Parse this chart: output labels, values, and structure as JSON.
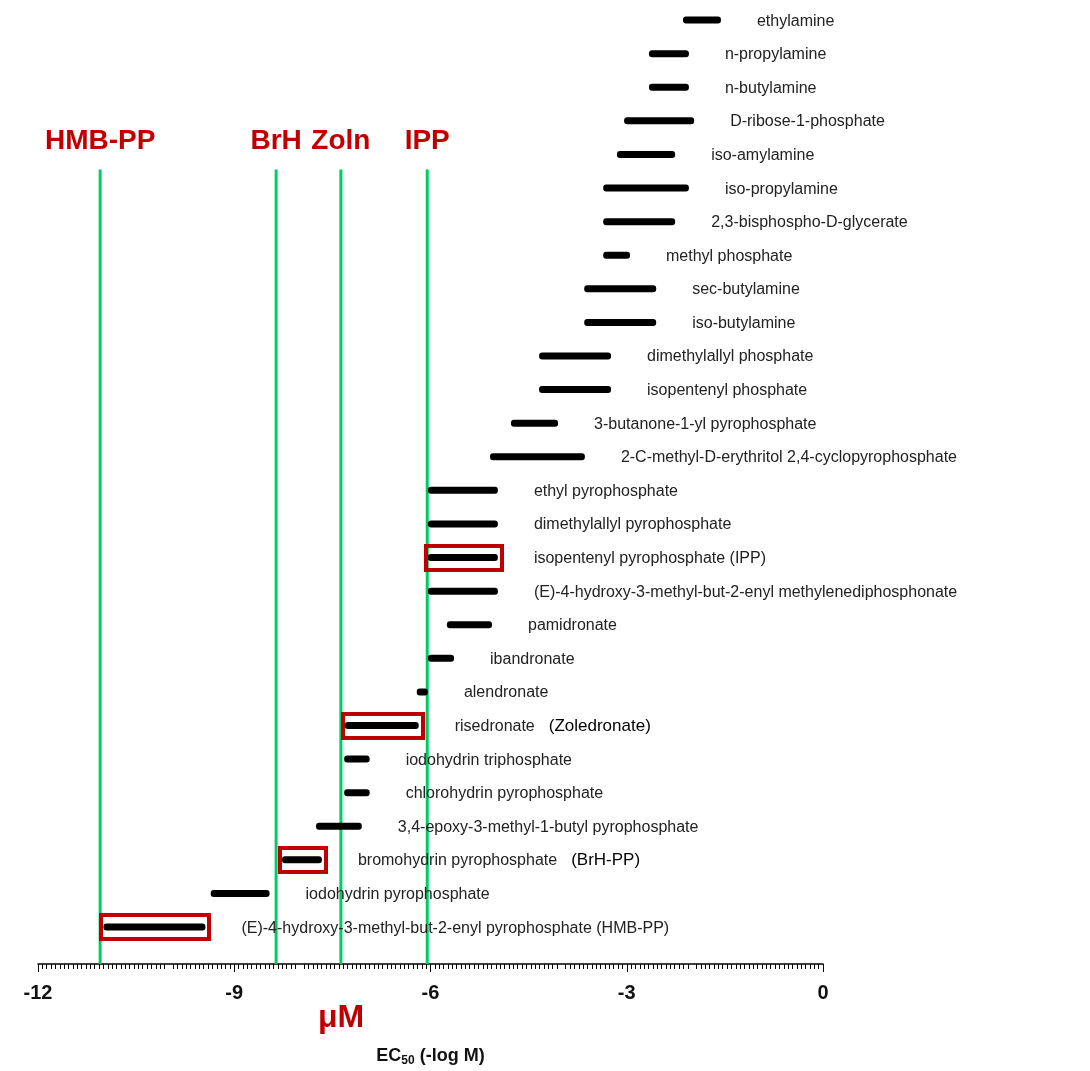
{
  "chart_data": {
    "type": "bar",
    "orientation": "horizontal",
    "xlabel": "EC$_{50}$ (-log M)",
    "categories": [
      "ethylamine",
      "n-propylamine",
      "n-butylamine",
      "D-ribose-1-phosphate",
      "iso-amylamine",
      "iso-propylamine",
      "2,3-bisphospho-D-glycerate",
      "methyl phosphate",
      "sec-butylamine",
      "iso-butylamine",
      "dimethylallyl phosphate",
      "isopentenyl phosphate",
      "3-butanone-1-yl pyrophosphate",
      "2-C-methyl-D-erythritol 2,4-cyclopyrophosphate",
      "ethyl pyrophosphate",
      "dimethylallyl pyrophosphate",
      "isopentenyl pyrophosphate (IPP)",
      "(E)-4-hydroxy-3-methyl-but-2-enyl methylenediphosphonate",
      "pamidronate",
      "ibandronate",
      "alendronate",
      "risedronate",
      "iodohydrin triphosphate",
      "chlorohydrin pyrophosphate",
      "3,4-epoxy-3-methyl-1-butyl pyrophosphate",
      "bromohydrin pyrophosphate",
      "iodohydrin pyrophosphate",
      "(E)-4-hydroxy-3-methyl-but-2-enyl pyrophosphate (HMB-PP)"
    ],
    "base": [
      -2.14,
      -2.66,
      -2.66,
      -3.04,
      -3.15,
      -3.36,
      -3.36,
      -3.36,
      -3.65,
      -3.65,
      -4.34,
      -4.34,
      -4.77,
      -5.09,
      -6.04,
      -6.04,
      -6.04,
      -6.04,
      -5.75,
      -6.04,
      -6.21,
      -7.31,
      -7.32,
      -7.32,
      -7.75,
      -8.27,
      -9.36,
      -11.0
    ],
    "values": [
      0.58,
      0.61,
      0.61,
      1.07,
      0.89,
      1.31,
      1.1,
      0.41,
      1.1,
      1.1,
      1.1,
      1.1,
      0.72,
      1.45,
      1.07,
      1.07,
      1.07,
      1.07,
      0.69,
      0.4,
      0.17,
      1.13,
      0.39,
      0.39,
      0.7,
      0.61,
      0.9,
      1.56
    ],
    "color": "#000000",
    "xlim": [
      -12,
      0
    ],
    "xticks": [
      -12,
      -9,
      -6,
      -3,
      0
    ],
    "grid": false,
    "ref_lines": [
      {
        "axis": "x",
        "value": -11.05,
        "label": "HMB-PP",
        "color": "#00cc66"
      },
      {
        "axis": "x",
        "value": -8.36,
        "label": "BrH",
        "color": "#00cc66"
      },
      {
        "axis": "x",
        "value": -7.37,
        "label": "Zoln",
        "color": "#00cc66"
      },
      {
        "axis": "x",
        "value": -6.05,
        "label": "IPP",
        "color": "#00cc66"
      }
    ],
    "annotations": [
      "(Zoledronate)",
      "(BrH-PP)",
      "μM"
    ]
  }
}
